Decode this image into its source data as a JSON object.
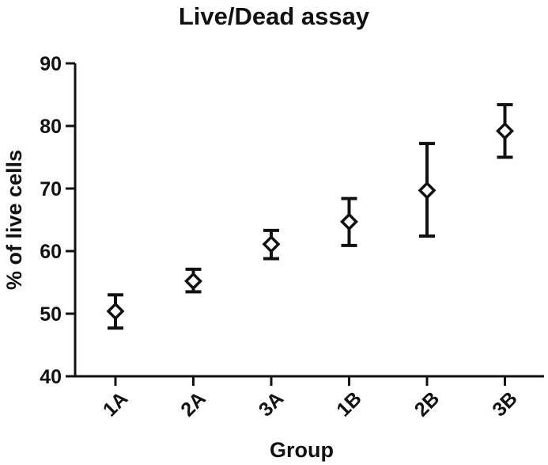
{
  "chart_data": {
    "type": "scatter",
    "title": "Live/Dead assay",
    "xlabel": "Group",
    "ylabel": "% of live cells",
    "categories": [
      "1A",
      "2A",
      "3A",
      "1B",
      "2B",
      "3B"
    ],
    "ylim": [
      40,
      90
    ],
    "yticks": [
      40,
      50,
      60,
      70,
      80,
      90
    ],
    "grid": false,
    "marker": "diamond",
    "error_bars": true,
    "series": [
      {
        "values": [
          50.4,
          55.2,
          61.1,
          64.7,
          69.7,
          79.2
        ],
        "err_low": [
          47.7,
          53.5,
          58.8,
          60.9,
          62.4,
          75.0
        ],
        "err_high": [
          53.0,
          57.1,
          63.3,
          68.4,
          77.2,
          83.4
        ]
      }
    ],
    "colors": {
      "axis": "#111111",
      "marker": "#111111"
    }
  }
}
